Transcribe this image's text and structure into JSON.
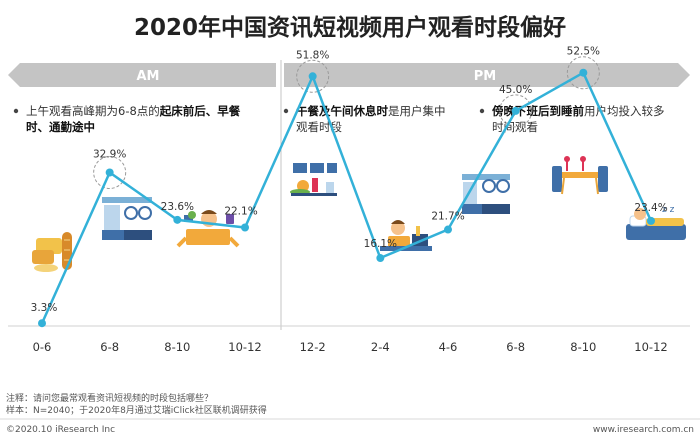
{
  "title": "2020年中国资讯短视频用户观看时段偏好",
  "sections": [
    {
      "label": "AM"
    },
    {
      "label": "PM"
    }
  ],
  "annotations": [
    {
      "lines": [
        [
          {
            "t": "上午观看高峰期为6-8点的",
            "b": false
          },
          {
            "t": "起床前后、早餐",
            "b": true
          }
        ],
        [
          {
            "t": "时、通勤途中",
            "b": true
          }
        ]
      ]
    },
    {
      "lines": [
        [
          {
            "t": "午餐及午间休息时",
            "b": true
          },
          {
            "t": "是用户集中",
            "b": false
          }
        ],
        [
          {
            "t": "观看时段",
            "b": false
          }
        ]
      ]
    },
    {
      "lines": [
        [
          {
            "t": "傍晚下班后到睡前",
            "b": true
          },
          {
            "t": "用户均投入较多",
            "b": false
          }
        ],
        [
          {
            "t": "时间观看",
            "b": false
          }
        ]
      ]
    }
  ],
  "chart_data": {
    "type": "line",
    "categories": [
      "0-6",
      "6-8",
      "8-10",
      "10-12",
      "12-2",
      "2-4",
      "4-6",
      "6-8",
      "8-10",
      "10-12"
    ],
    "series": [
      {
        "values": [
          3.3,
          32.9,
          23.6,
          22.1,
          51.8,
          16.1,
          21.7,
          45.0,
          52.5,
          23.4
        ]
      }
    ],
    "value_labels": [
      "3.3%",
      "32.9%",
      "23.6%",
      "22.1%",
      "51.8%",
      "16.1%",
      "21.7%",
      "45.0%",
      "52.5%",
      "23.4%"
    ],
    "highlighted_points": [
      "6-8",
      "12-2",
      "6-8",
      "8-10"
    ],
    "xlabel": "",
    "ylabel": "",
    "ylim": [
      0,
      55
    ],
    "grid": false,
    "line_color": "#33b1d8",
    "legend": "none"
  },
  "footer": {
    "note": "注释：请问您最常观看资讯短视频的时段包括哪些？",
    "sample": "样本：N=2040；于2020年8月通过艾瑞iClick社区联机调研获得",
    "copyright": "©2020.10 iResearch Inc",
    "website": "www.iresearch.com.cn"
  },
  "colors": {
    "banner": "#c4c4c4",
    "accent": "#33b1d8",
    "icon_orange": "#f2a93b",
    "icon_blue": "#3f6fa8"
  },
  "icons": [
    "bread-icon",
    "kitchen-icon",
    "busy-worker-icon",
    "lunch-tray-icon",
    "desk-worker-icon",
    "home-kitchen-icon",
    "dinner-table-icon",
    "sleeping-person-icon"
  ]
}
